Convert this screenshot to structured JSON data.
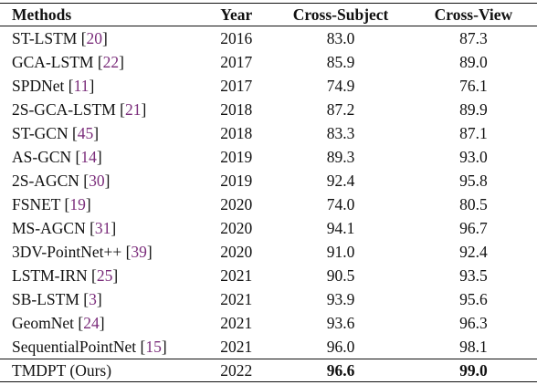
{
  "headers": {
    "methods": "Methods",
    "year": "Year",
    "cross_subject": "Cross-Subject",
    "cross_view": "Cross-View"
  },
  "rows": [
    {
      "name": "ST-LSTM",
      "ref": "20",
      "year": "2016",
      "cs": "83.0",
      "cv": "87.3"
    },
    {
      "name": "GCA-LSTM",
      "ref": "22",
      "year": "2017",
      "cs": "85.9",
      "cv": "89.0"
    },
    {
      "name": "SPDNet",
      "ref": "11",
      "year": "2017",
      "cs": "74.9",
      "cv": "76.1"
    },
    {
      "name": "2S-GCA-LSTM",
      "ref": "21",
      "year": "2018",
      "cs": "87.2",
      "cv": "89.9"
    },
    {
      "name": "ST-GCN",
      "ref": "45",
      "year": "2018",
      "cs": "83.3",
      "cv": "87.1"
    },
    {
      "name": "AS-GCN",
      "ref": "14",
      "year": "2019",
      "cs": "89.3",
      "cv": "93.0"
    },
    {
      "name": "2S-AGCN",
      "ref": "30",
      "year": "2019",
      "cs": "92.4",
      "cv": "95.8"
    },
    {
      "name": "FSNET",
      "ref": "19",
      "year": "2020",
      "cs": "74.0",
      "cv": "80.5"
    },
    {
      "name": "MS-AGCN",
      "ref": "31",
      "year": "2020",
      "cs": "94.1",
      "cv": "96.7"
    },
    {
      "name": "3DV-PointNet++",
      "ref": "39",
      "year": "2020",
      "cs": "91.0",
      "cv": "92.4"
    },
    {
      "name": "LSTM-IRN",
      "ref": "25",
      "year": "2021",
      "cs": "90.5",
      "cv": "93.5"
    },
    {
      "name": "SB-LSTM",
      "ref": "3",
      "year": "2021",
      "cs": "93.9",
      "cv": "95.6"
    },
    {
      "name": "GeomNet",
      "ref": "24",
      "year": "2021",
      "cs": "93.6",
      "cv": "96.3"
    },
    {
      "name": "SequentialPointNet",
      "ref": "15",
      "year": "2021",
      "cs": "96.0",
      "cv": "98.1"
    }
  ],
  "ours": {
    "name": "TMDPT (Ours)",
    "year": "2022",
    "cs": "96.6",
    "cv": "99.0"
  },
  "colors": {
    "citation": "#7b2d7b",
    "text": "#111111",
    "rules": "#111111"
  }
}
